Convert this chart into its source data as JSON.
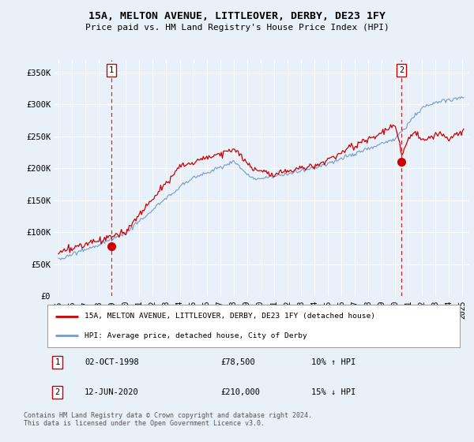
{
  "title": "15A, MELTON AVENUE, LITTLEOVER, DERBY, DE23 1FY",
  "subtitle": "Price paid vs. HM Land Registry's House Price Index (HPI)",
  "legend_line1": "15A, MELTON AVENUE, LITTLEOVER, DERBY, DE23 1FY (detached house)",
  "legend_line2": "HPI: Average price, detached house, City of Derby",
  "annotation1_date": "02-OCT-1998",
  "annotation1_price": "£78,500",
  "annotation1_hpi": "10% ↑ HPI",
  "annotation1_year": 1998.92,
  "annotation1_value": 78500,
  "annotation2_date": "12-JUN-2020",
  "annotation2_price": "£210,000",
  "annotation2_hpi": "15% ↓ HPI",
  "annotation2_year": 2020.46,
  "annotation2_value": 210000,
  "yticks": [
    0,
    50000,
    100000,
    150000,
    200000,
    250000,
    300000,
    350000
  ],
  "ytick_labels": [
    "£0",
    "£50K",
    "£100K",
    "£150K",
    "£200K",
    "£250K",
    "£300K",
    "£350K"
  ],
  "ylim": [
    0,
    370000
  ],
  "xlim_start": 1994.7,
  "xlim_end": 2025.5,
  "hpi_color": "#7799cc",
  "price_color": "#cc0000",
  "bg_color": "#e8f0f8",
  "plot_bg": "#e8f0fa",
  "grid_color": "#ffffff",
  "footer": "Contains HM Land Registry data © Crown copyright and database right 2024.\nThis data is licensed under the Open Government Licence v3.0."
}
